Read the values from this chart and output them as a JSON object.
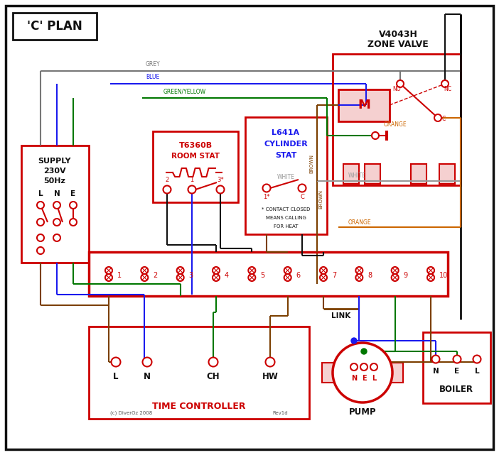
{
  "title": "'C' PLAN",
  "red": "#cc0000",
  "blue": "#1a1aee",
  "green": "#007700",
  "brown": "#7B3F00",
  "grey": "#777777",
  "orange": "#cc6600",
  "black": "#111111",
  "white_wire": "#999999",
  "supply_texts": [
    "SUPPLY",
    "230V",
    "50Hz"
  ],
  "lne": [
    "L",
    "N",
    "E"
  ],
  "zone_valve_title": [
    "V4043H",
    "ZONE VALVE"
  ],
  "room_stat_title": [
    "T6360B",
    "ROOM STAT"
  ],
  "cyl_stat_title": [
    "L641A",
    "CYLINDER",
    "STAT"
  ],
  "terminal_labels": [
    "1",
    "2",
    "3",
    "4",
    "5",
    "6",
    "7",
    "8",
    "9",
    "10"
  ],
  "tc_labels": [
    "L",
    "N",
    "CH",
    "HW"
  ],
  "tc_title": "TIME CONTROLLER",
  "pump_label": "PUMP",
  "boiler_label": "BOILER",
  "link_label": "LINK",
  "grey_label": "GREY",
  "blue_label": "BLUE",
  "gy_label": "GREEN/YELLOW",
  "brown_label": "BROWN",
  "white_label": "WHITE",
  "orange_label": "ORANGE",
  "footnote1": "* CONTACT CLOSED",
  "footnote2": "MEANS CALLING",
  "footnote3": "FOR HEAT",
  "copyright": "(c) DiverOz 2008",
  "rev": "Rev1d"
}
